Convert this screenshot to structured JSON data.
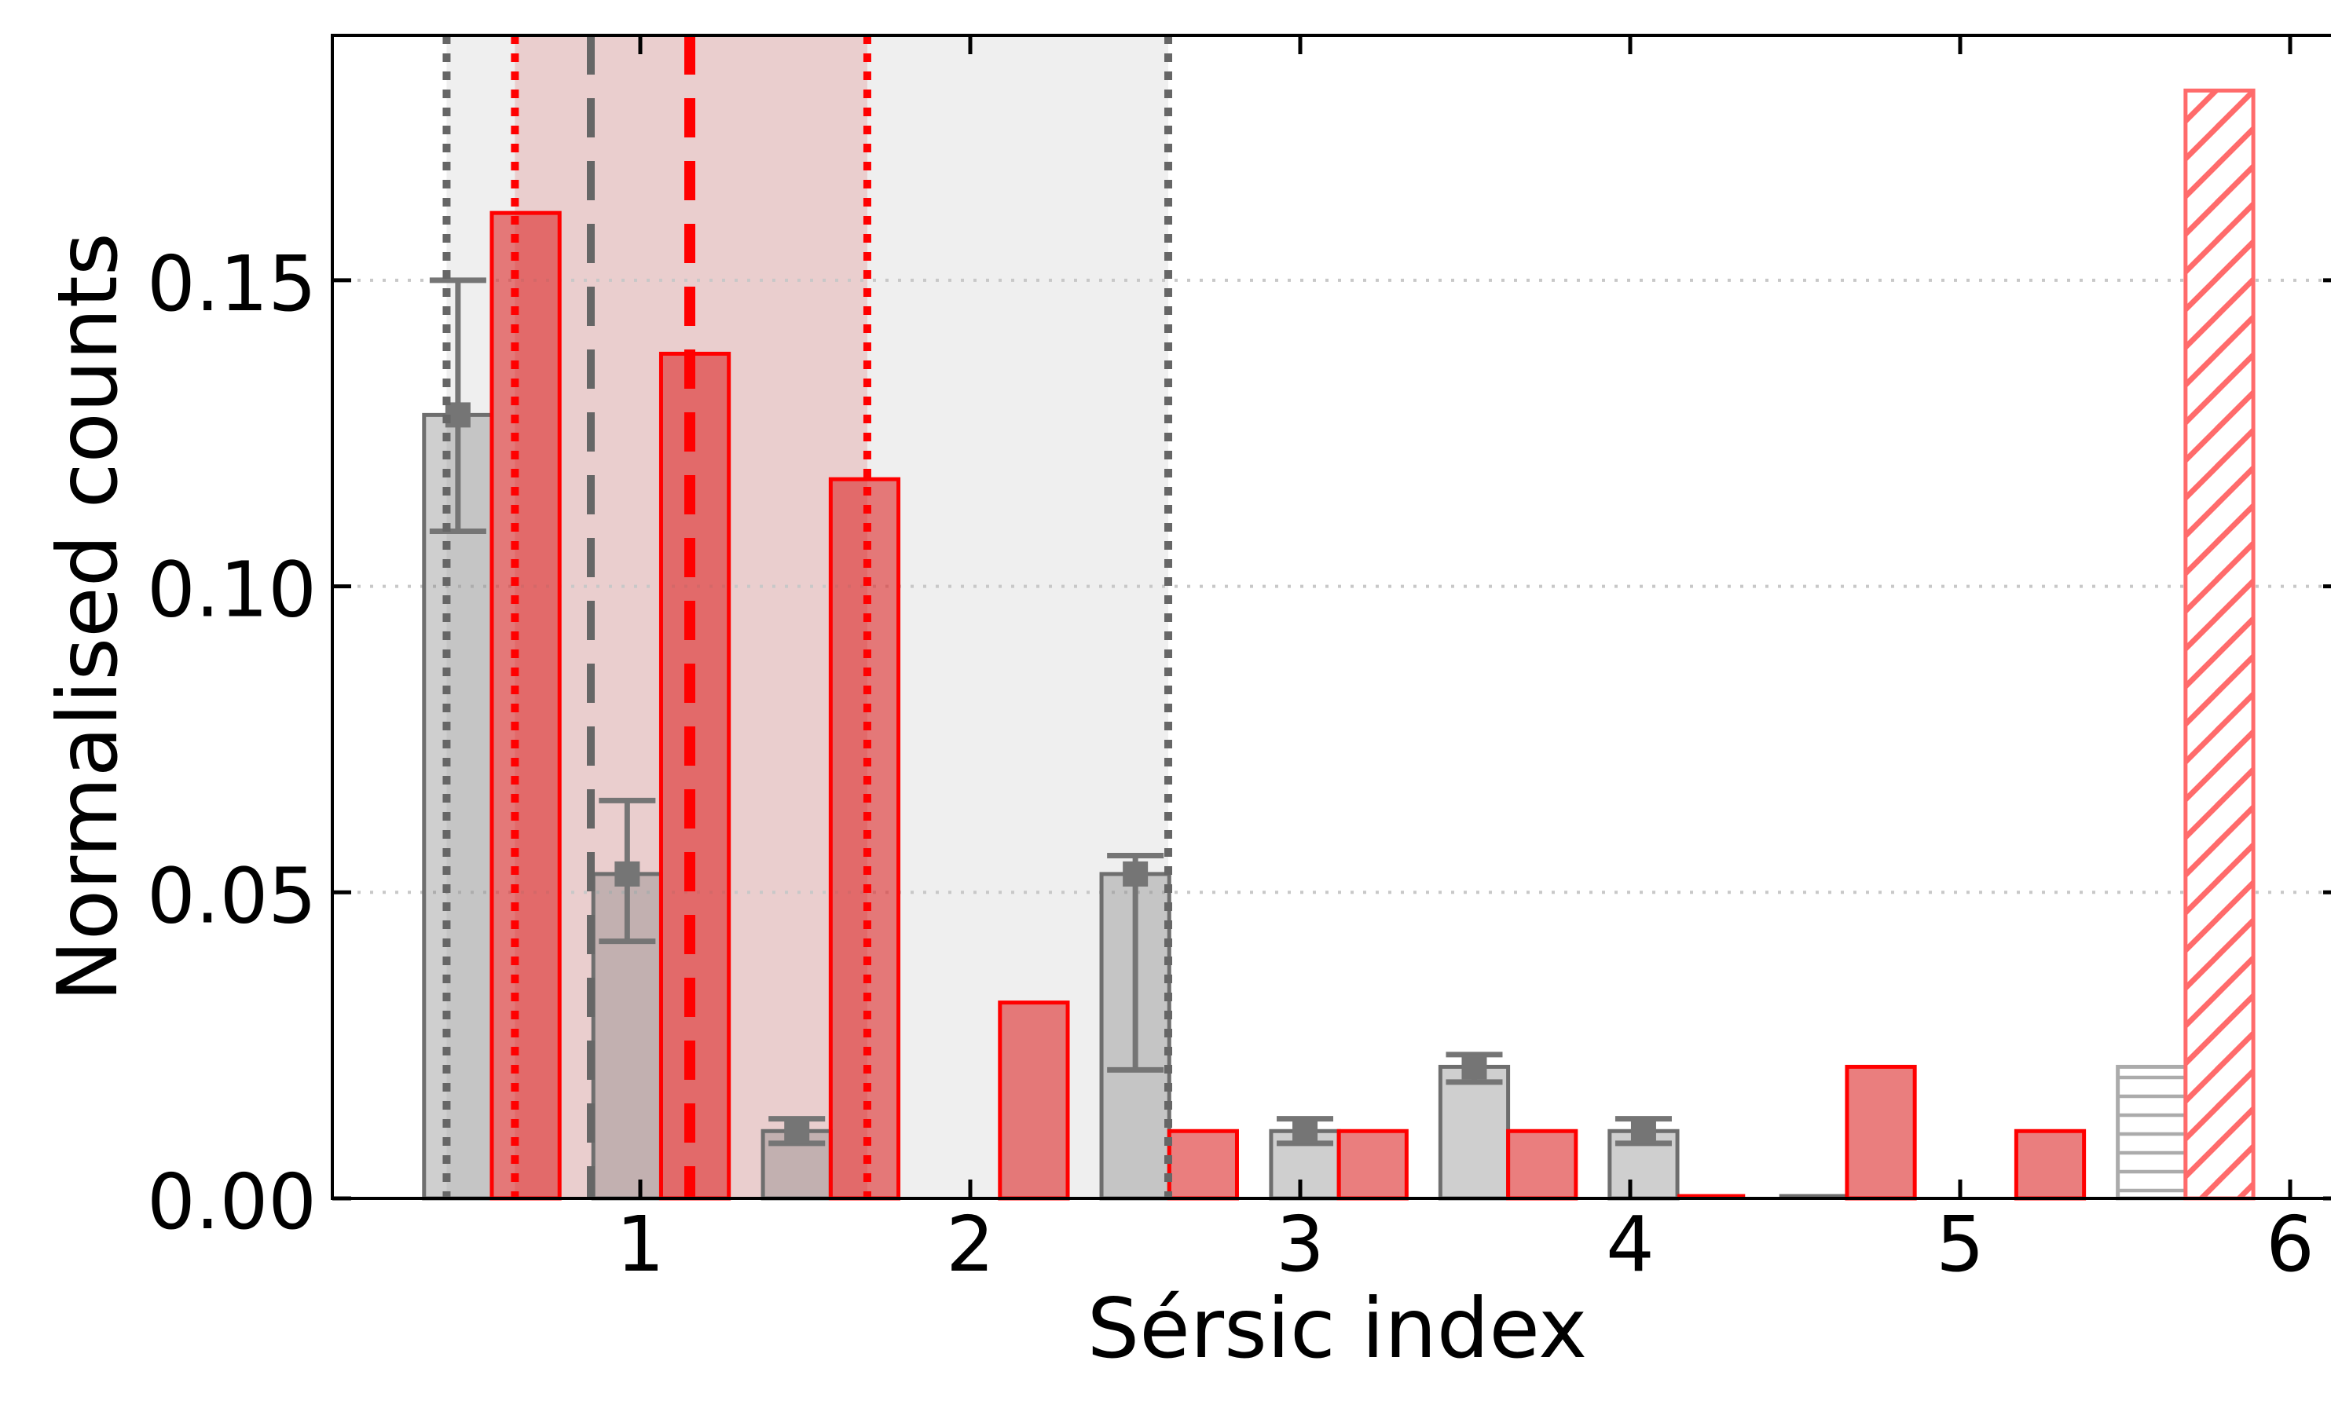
{
  "chart_data": {
    "type": "bar",
    "subtype": "paired-histogram",
    "title": "",
    "xlabel": "Sérsic index",
    "ylabel": "Normalised counts",
    "xlim": [
      0.067,
      6.157
    ],
    "ylim": [
      0,
      0.19
    ],
    "x_ticks": [
      1,
      2,
      3,
      4,
      5,
      6
    ],
    "y_ticks": [
      {
        "value": 0.0,
        "label": "0.00"
      },
      {
        "value": 0.05,
        "label": "0.05"
      },
      {
        "value": 0.1,
        "label": "0.10"
      },
      {
        "value": 0.15,
        "label": "0.15"
      }
    ],
    "grid": {
      "horizontal_dotted_at": [
        0.05,
        0.1,
        0.15
      ],
      "color": "#c8c8c8"
    },
    "bar_width": 0.2053,
    "pair_boundaries": [
      0.55,
      1.063,
      1.577,
      2.09,
      2.603,
      3.117,
      3.63,
      4.143,
      4.657,
      5.17,
      5.683
    ],
    "series": [
      {
        "name": "grey-histogram",
        "side": "left",
        "fill": "rgba(130,130,130,0.38)",
        "edge": "#6e6e6e",
        "values": [
          0.128,
          0.053,
          0.011,
          0,
          0.053,
          0.011,
          0.0215,
          0.011,
          0,
          0,
          0.0215
        ],
        "hatch": [
          null,
          null,
          null,
          null,
          null,
          null,
          null,
          null,
          null,
          null,
          "horizontal"
        ],
        "hatch_color": "#ababab",
        "zero_edge_segments": [
          8
        ],
        "errors": [
          {
            "bin": 0,
            "center": 0.128,
            "low": 0.109,
            "high": 0.15
          },
          {
            "bin": 1,
            "center": 0.053,
            "low": 0.042,
            "high": 0.065
          },
          {
            "bin": 2,
            "center": 0.011,
            "low": 0.009,
            "high": 0.013
          },
          {
            "bin": 4,
            "center": 0.053,
            "low": 0.021,
            "high": 0.056
          },
          {
            "bin": 5,
            "center": 0.011,
            "low": 0.009,
            "high": 0.013
          },
          {
            "bin": 6,
            "center": 0.0215,
            "low": 0.019,
            "high": 0.0235
          },
          {
            "bin": 7,
            "center": 0.011,
            "low": 0.009,
            "high": 0.013
          }
        ],
        "error_color": "#757575"
      },
      {
        "name": "red-histogram",
        "side": "right",
        "fill": "rgba(220,40,40,0.6)",
        "edge": "#ff0000",
        "values": [
          0.161,
          0.138,
          0.1175,
          0.032,
          0.011,
          0.011,
          0.011,
          0,
          0.0215,
          0.011,
          0.181
        ],
        "hatch": [
          null,
          null,
          null,
          null,
          null,
          null,
          null,
          null,
          null,
          null,
          "diagonal"
        ],
        "hatch_color": "#ff6b6b",
        "zero_edge_segments": [
          7
        ],
        "errors": [],
        "error_color": null
      }
    ],
    "vlines": [
      {
        "x": 0.413,
        "color": "#666666",
        "style": "dotted",
        "width": 10
      },
      {
        "x": 0.62,
        "color": "#ff0000",
        "style": "dotted",
        "width": 10
      },
      {
        "x": 0.85,
        "color": "#666666",
        "style": "dashed",
        "width": 10
      },
      {
        "x": 1.15,
        "color": "#ff0000",
        "style": "dashed",
        "width": 14
      },
      {
        "x": 1.688,
        "color": "#ff0000",
        "style": "dotted",
        "width": 10
      },
      {
        "x": 2.6,
        "color": "#666666",
        "style": "dotted",
        "width": 10
      }
    ],
    "spans": [
      {
        "x0": 0.413,
        "x1": 2.6,
        "fill": "rgba(128,128,128,0.13)",
        "name": "grey-shaded-region"
      },
      {
        "x0": 0.62,
        "x1": 1.688,
        "fill": "rgba(214,39,40,0.16)",
        "name": "red-shaded-region"
      }
    ],
    "background": "#ffffff",
    "spine_color": "#000000"
  }
}
